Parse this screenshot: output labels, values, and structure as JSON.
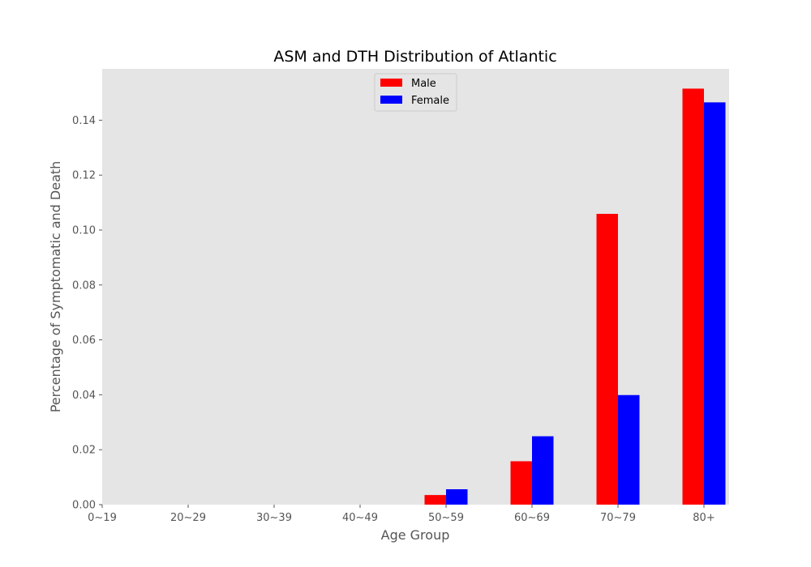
{
  "chart_data": {
    "type": "bar",
    "title": "ASM and DTH Distribution of Atlantic",
    "xlabel": "Age Group",
    "ylabel": "Percentage of Symptomatic and Death",
    "categories": [
      "0~19",
      "20~29",
      "30~39",
      "40~49",
      "50~59",
      "60~69",
      "70~79",
      "80+"
    ],
    "series": [
      {
        "name": "Male",
        "color": "#ff0000",
        "values": [
          0,
          0,
          0,
          0,
          0.0035,
          0.0158,
          0.1059,
          0.1515
        ]
      },
      {
        "name": "Female",
        "color": "#0000ff",
        "values": [
          0,
          0,
          0,
          0,
          0.0056,
          0.0249,
          0.0399,
          0.1465
        ]
      }
    ],
    "ylim": [
      0,
      0.158
    ],
    "yticks": [
      "0.00",
      "0.02",
      "0.04",
      "0.06",
      "0.08",
      "0.10",
      "0.12",
      "0.14"
    ],
    "grid": false,
    "legend_position": "top-center",
    "background": "#e5e5e5"
  }
}
